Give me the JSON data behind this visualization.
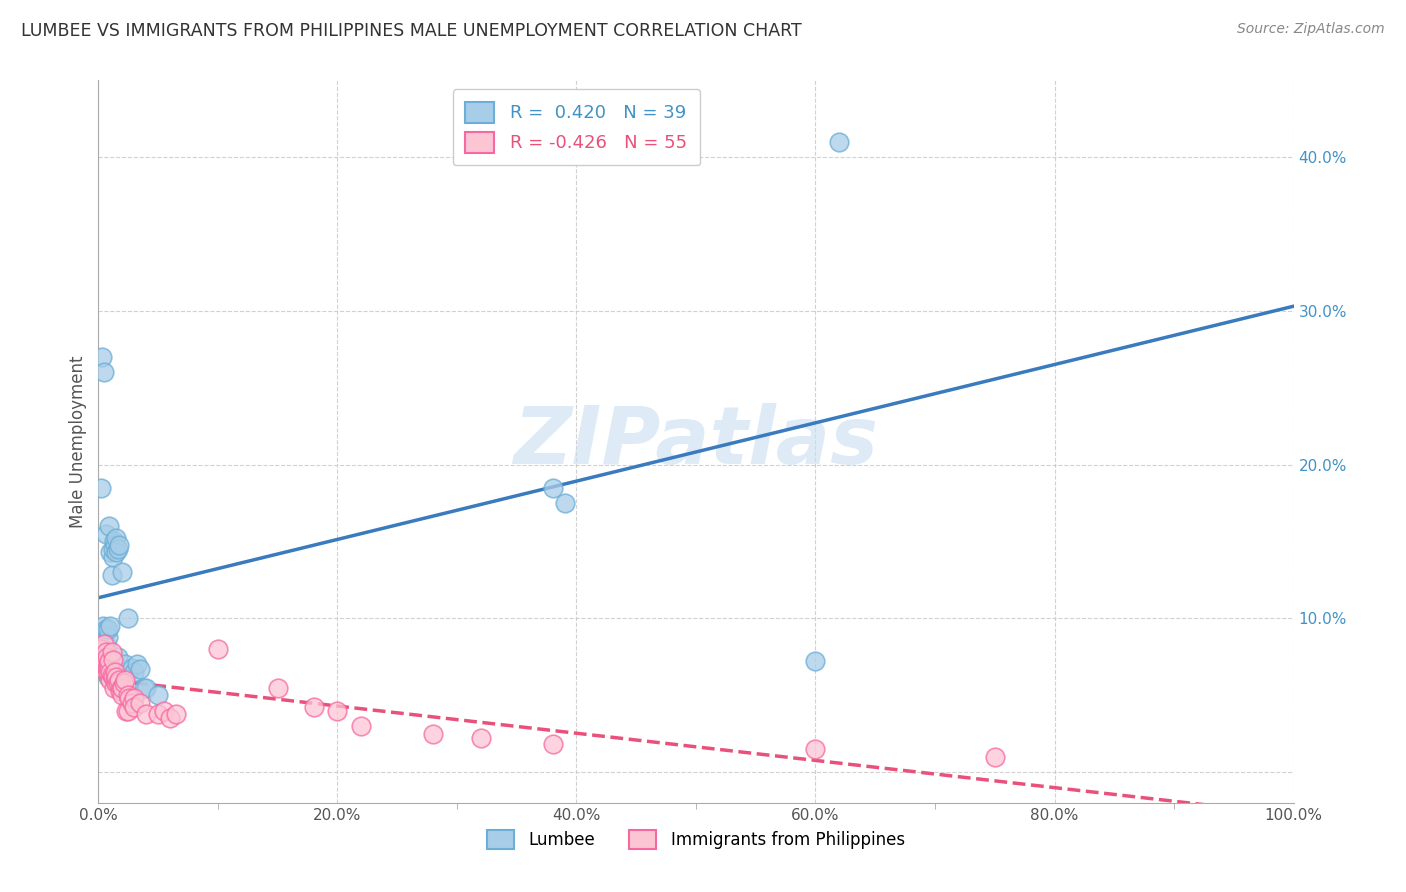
{
  "title": "LUMBEE VS IMMIGRANTS FROM PHILIPPINES MALE UNEMPLOYMENT CORRELATION CHART",
  "source": "Source: ZipAtlas.com",
  "ylabel": "Male Unemployment",
  "xlim": [
    0,
    1.0
  ],
  "ylim": [
    -0.02,
    0.45
  ],
  "x_ticks": [
    0.0,
    0.2,
    0.4,
    0.6,
    0.8,
    1.0
  ],
  "x_tick_labels": [
    "0.0%",
    "20.0%",
    "40.0%",
    "60.0%",
    "80.0%",
    "100.0%"
  ],
  "y_ticks": [
    0.0,
    0.1,
    0.2,
    0.3,
    0.4
  ],
  "y_tick_labels": [
    "",
    "10.0%",
    "20.0%",
    "30.0%",
    "40.0%"
  ],
  "lumbee_R": 0.42,
  "lumbee_N": 39,
  "philippines_R": -0.426,
  "philippines_N": 55,
  "blue_scatter_color": "#a8cde8",
  "blue_scatter_edge": "#6baed6",
  "pink_scatter_color": "#fcc5d4",
  "pink_scatter_edge": "#f768a1",
  "blue_line_color": "#3a7bbf",
  "pink_line_color": "#e8517a",
  "watermark_color": "#c8dff0",
  "legend_labels": [
    "Lumbee",
    "Immigrants from Philippines"
  ],
  "lumbee_x": [
    0.001,
    0.002,
    0.003,
    0.004,
    0.005,
    0.006,
    0.006,
    0.007,
    0.008,
    0.008,
    0.009,
    0.01,
    0.01,
    0.011,
    0.012,
    0.012,
    0.013,
    0.014,
    0.015,
    0.015,
    0.016,
    0.016,
    0.017,
    0.02,
    0.022,
    0.025,
    0.028,
    0.03,
    0.032,
    0.035,
    0.038,
    0.04,
    0.05,
    0.38,
    0.39,
    0.6,
    0.62,
    0.005,
    0.008
  ],
  "lumbee_y": [
    0.088,
    0.185,
    0.27,
    0.095,
    0.09,
    0.093,
    0.155,
    0.082,
    0.088,
    0.093,
    0.16,
    0.095,
    0.143,
    0.128,
    0.14,
    0.145,
    0.15,
    0.148,
    0.152,
    0.143,
    0.145,
    0.075,
    0.148,
    0.13,
    0.07,
    0.1,
    0.068,
    0.065,
    0.07,
    0.067,
    0.055,
    0.055,
    0.05,
    0.185,
    0.175,
    0.072,
    0.41,
    0.26,
    0.062
  ],
  "philippines_x": [
    0.001,
    0.002,
    0.003,
    0.004,
    0.005,
    0.005,
    0.006,
    0.007,
    0.007,
    0.008,
    0.008,
    0.009,
    0.009,
    0.01,
    0.01,
    0.011,
    0.011,
    0.012,
    0.012,
    0.013,
    0.014,
    0.014,
    0.015,
    0.015,
    0.016,
    0.017,
    0.018,
    0.019,
    0.02,
    0.02,
    0.021,
    0.022,
    0.023,
    0.025,
    0.025,
    0.026,
    0.028,
    0.03,
    0.03,
    0.035,
    0.04,
    0.05,
    0.055,
    0.06,
    0.065,
    0.1,
    0.15,
    0.18,
    0.2,
    0.22,
    0.28,
    0.32,
    0.38,
    0.6,
    0.75
  ],
  "philippines_y": [
    0.075,
    0.08,
    0.068,
    0.073,
    0.07,
    0.083,
    0.078,
    0.068,
    0.075,
    0.065,
    0.07,
    0.068,
    0.072,
    0.06,
    0.065,
    0.063,
    0.078,
    0.062,
    0.073,
    0.055,
    0.06,
    0.065,
    0.058,
    0.062,
    0.058,
    0.06,
    0.053,
    0.055,
    0.05,
    0.055,
    0.058,
    0.06,
    0.04,
    0.05,
    0.04,
    0.048,
    0.045,
    0.048,
    0.042,
    0.045,
    0.038,
    0.038,
    0.04,
    0.035,
    0.038,
    0.08,
    0.055,
    0.042,
    0.04,
    0.03,
    0.025,
    0.022,
    0.018,
    0.015,
    0.01
  ]
}
